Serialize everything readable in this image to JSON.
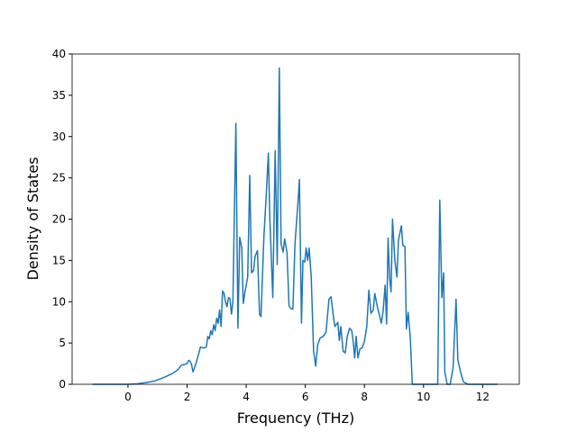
{
  "chart_data": {
    "type": "line",
    "xlabel": "Frequency (THz)",
    "ylabel": "Density of States",
    "xlim": [
      -1.89,
      13.24
    ],
    "ylim": [
      0,
      40
    ],
    "xticks": [
      0,
      2,
      4,
      6,
      8,
      10,
      12
    ],
    "yticks": [
      0,
      5,
      10,
      15,
      20,
      25,
      30,
      35,
      40
    ],
    "series": [
      {
        "color": "#1f77b4",
        "x": [
          -1.2,
          -0.5,
          0,
          0.3,
          0.6,
          0.9,
          1.2,
          1.5,
          1.7,
          1.8,
          1.9,
          2.0,
          2.05,
          2.1,
          2.15,
          2.2,
          2.3,
          2.4,
          2.45,
          2.55,
          2.65,
          2.7,
          2.75,
          2.8,
          2.85,
          2.9,
          2.95,
          3.0,
          3.05,
          3.1,
          3.15,
          3.2,
          3.25,
          3.3,
          3.35,
          3.4,
          3.45,
          3.5,
          3.55,
          3.65,
          3.72,
          3.78,
          3.85,
          3.9,
          3.95,
          4.05,
          4.12,
          4.18,
          4.25,
          4.3,
          4.38,
          4.45,
          4.5,
          4.6,
          4.68,
          4.75,
          4.8,
          4.9,
          4.98,
          5.05,
          5.12,
          5.18,
          5.25,
          5.3,
          5.38,
          5.45,
          5.5,
          5.58,
          5.65,
          5.75,
          5.8,
          5.87,
          5.92,
          5.98,
          6.03,
          6.08,
          6.13,
          6.2,
          6.28,
          6.35,
          6.42,
          6.5,
          6.6,
          6.7,
          6.8,
          6.87,
          6.95,
          7.0,
          7.1,
          7.15,
          7.2,
          7.28,
          7.35,
          7.42,
          7.5,
          7.57,
          7.62,
          7.67,
          7.72,
          7.78,
          7.85,
          7.92,
          8.0,
          8.08,
          8.15,
          8.22,
          8.3,
          8.35,
          8.43,
          8.5,
          8.57,
          8.63,
          8.7,
          8.75,
          8.8,
          8.85,
          8.9,
          8.95,
          9.03,
          9.1,
          9.15,
          9.25,
          9.3,
          9.37,
          9.42,
          9.48,
          9.55,
          9.62,
          9.8,
          10.2,
          10.48,
          10.55,
          10.62,
          10.68,
          10.72,
          10.8,
          10.9,
          11.0,
          11.1,
          11.16,
          11.25,
          11.35,
          11.5,
          12.0,
          12.5
        ],
        "values": [
          0,
          0,
          0,
          0.05,
          0.2,
          0.4,
          0.8,
          1.3,
          1.8,
          2.3,
          2.4,
          2.5,
          2.9,
          2.8,
          2.4,
          1.5,
          2.5,
          3.8,
          4.5,
          4.4,
          4.5,
          5.8,
          5.5,
          6.5,
          6.0,
          7.2,
          6.5,
          8.0,
          7.4,
          9.0,
          7.0,
          11.3,
          11.0,
          10.0,
          9.4,
          10.5,
          10.4,
          8.5,
          10.0,
          31.6,
          6.8,
          17.8,
          16.5,
          9.8,
          11.0,
          13.0,
          25.3,
          13.5,
          13.8,
          15.5,
          16.2,
          8.5,
          8.2,
          18,
          23,
          28,
          20,
          10.5,
          28.3,
          14.5,
          38.3,
          17,
          16,
          17.6,
          16,
          9.5,
          9.2,
          9.1,
          17,
          22,
          24.8,
          7.4,
          15,
          14.8,
          16.5,
          15.0,
          16.5,
          13,
          4,
          2.2,
          4.8,
          5.6,
          5.8,
          6.3,
          10.3,
          10.6,
          8.2,
          7.0,
          7.5,
          5.3,
          7.0,
          4.0,
          3.8,
          5.8,
          6.8,
          6.5,
          5.2,
          3.2,
          5.8,
          3.2,
          4.3,
          4.4,
          5.2,
          7.0,
          11.4,
          8.6,
          9.0,
          11.0,
          9.5,
          8.5,
          7.4,
          8.8,
          12.0,
          7.3,
          17.7,
          13.0,
          11.2,
          20.0,
          15.0,
          13.0,
          17.4,
          19.2,
          16.8,
          16.7,
          6.7,
          8.7,
          5.7,
          0,
          0,
          0,
          0,
          22.3,
          10.5,
          13.5,
          1.5,
          0,
          0,
          2.0,
          10.3,
          3.0,
          1.5,
          0.3,
          0,
          0,
          0
        ]
      }
    ]
  }
}
